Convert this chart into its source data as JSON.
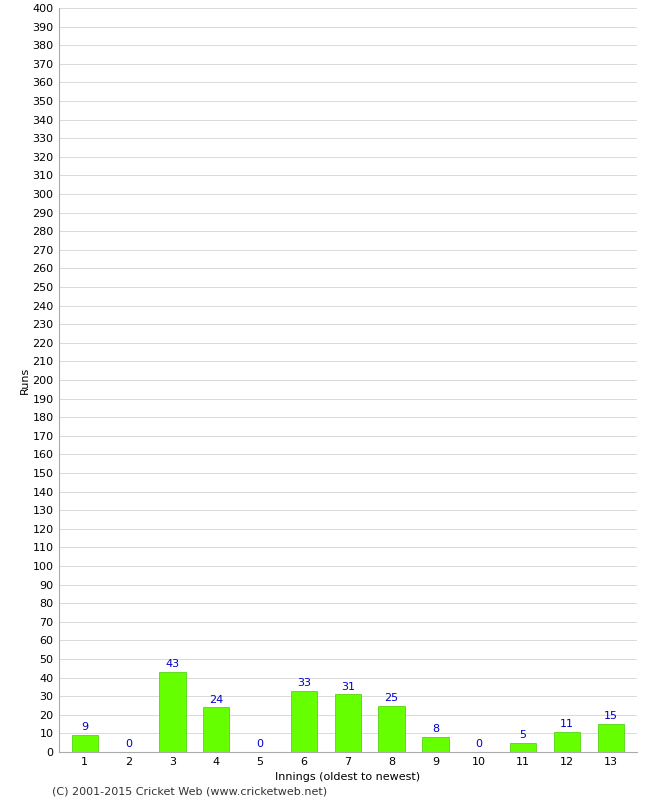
{
  "title": "",
  "values": [
    9,
    0,
    43,
    24,
    0,
    33,
    31,
    25,
    8,
    0,
    5,
    11,
    15
  ],
  "categories": [
    "1",
    "2",
    "3",
    "4",
    "5",
    "6",
    "7",
    "8",
    "9",
    "10",
    "11",
    "12",
    "13"
  ],
  "xlabel": "Innings (oldest to newest)",
  "ylabel": "Runs",
  "ylim": [
    0,
    400
  ],
  "ytick_step": 10,
  "bar_color": "#66ff00",
  "bar_edge_color": "#44cc00",
  "label_color": "#0000cc",
  "background_color": "#ffffff",
  "grid_color": "#cccccc",
  "footer": "(C) 2001-2015 Cricket Web (www.cricketweb.net)",
  "axis_fontsize": 8,
  "label_fontsize": 8,
  "footer_fontsize": 8
}
